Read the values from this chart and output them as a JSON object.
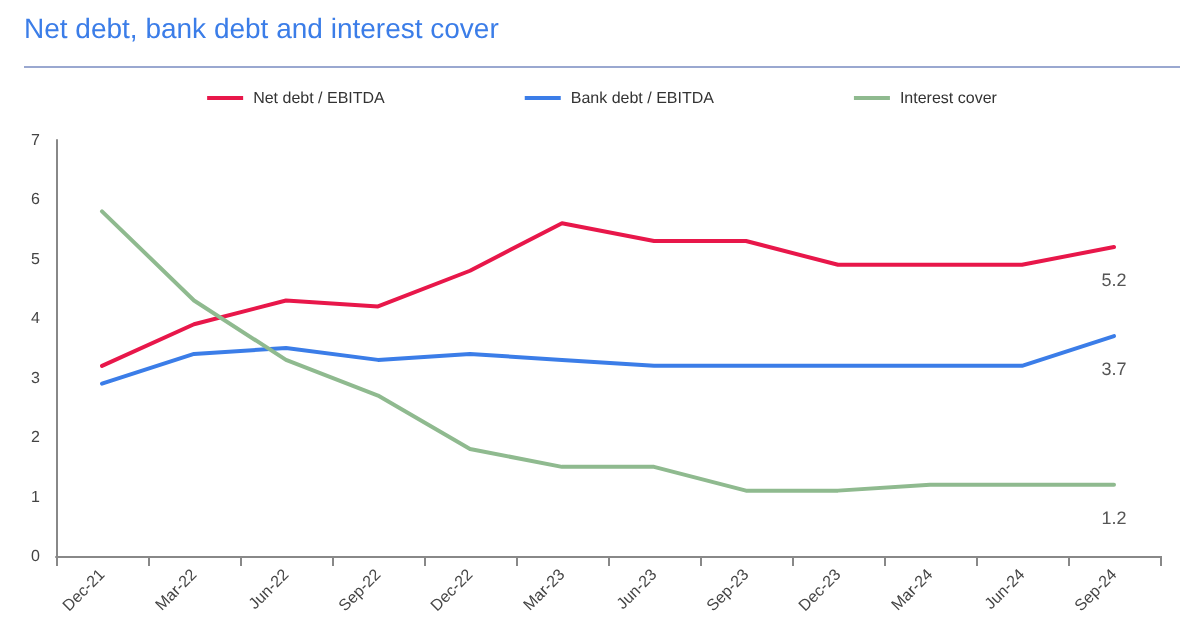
{
  "chart_data": {
    "type": "line",
    "title": "Net debt, bank debt and interest cover",
    "categories": [
      "Dec-21",
      "Mar-22",
      "Jun-22",
      "Sep-22",
      "Dec-22",
      "Mar-23",
      "Jun-23",
      "Sep-23",
      "Dec-23",
      "Mar-24",
      "Jun-24",
      "Sep-24"
    ],
    "series": [
      {
        "name": "Net debt / EBITDA",
        "color": "#e8174a",
        "values": [
          3.2,
          3.9,
          4.3,
          4.2,
          4.8,
          5.6,
          5.3,
          5.3,
          4.9,
          4.9,
          4.9,
          5.2
        ],
        "value_labels": [
          null,
          null,
          null,
          null,
          null,
          null,
          null,
          null,
          null,
          null,
          null,
          "5.2"
        ]
      },
      {
        "name": "Bank debt / EBITDA",
        "color": "#3b7de8",
        "values": [
          2.9,
          3.4,
          3.5,
          3.3,
          3.4,
          3.3,
          3.2,
          3.2,
          3.2,
          3.2,
          3.2,
          3.7
        ],
        "value_labels": [
          null,
          null,
          null,
          null,
          null,
          null,
          null,
          null,
          null,
          null,
          null,
          "3.7"
        ]
      },
      {
        "name": "Interest cover",
        "color": "#8fba8f",
        "values": [
          5.8,
          4.3,
          3.3,
          2.7,
          1.8,
          1.5,
          1.5,
          1.1,
          1.1,
          1.2,
          1.2,
          1.2
        ],
        "value_labels": [
          null,
          null,
          null,
          null,
          null,
          null,
          null,
          null,
          null,
          null,
          null,
          "1.2"
        ]
      }
    ],
    "ylim": [
      0,
      7
    ],
    "yticks": [
      0,
      1,
      2,
      3,
      4,
      5,
      6,
      7
    ],
    "grid": false,
    "legend": "top",
    "marker": "none",
    "line_style": "solid"
  }
}
